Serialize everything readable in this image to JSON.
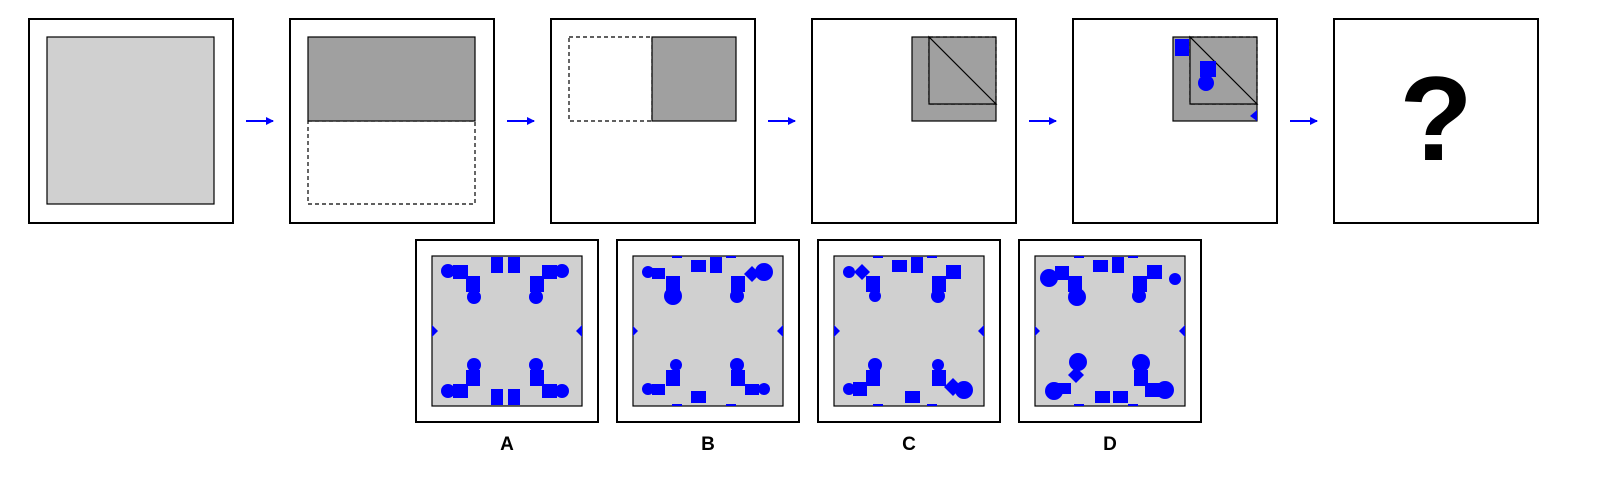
{
  "puzzle": {
    "question_mark": "?",
    "colors": {
      "paper": "#d0d0d0",
      "folded_paper": "#a0a0a0",
      "hole": "#0000ff",
      "arrow": "#0000ff",
      "frame": "#000000"
    },
    "steps": [
      {
        "name": "unfolded-sheet"
      },
      {
        "name": "fold-top-half-down"
      },
      {
        "name": "fold-left-half-right"
      },
      {
        "name": "fold-diagonal"
      },
      {
        "name": "punch-holes"
      }
    ],
    "options": [
      {
        "label": "A"
      },
      {
        "label": "B"
      },
      {
        "label": "C"
      },
      {
        "label": "D"
      }
    ]
  }
}
